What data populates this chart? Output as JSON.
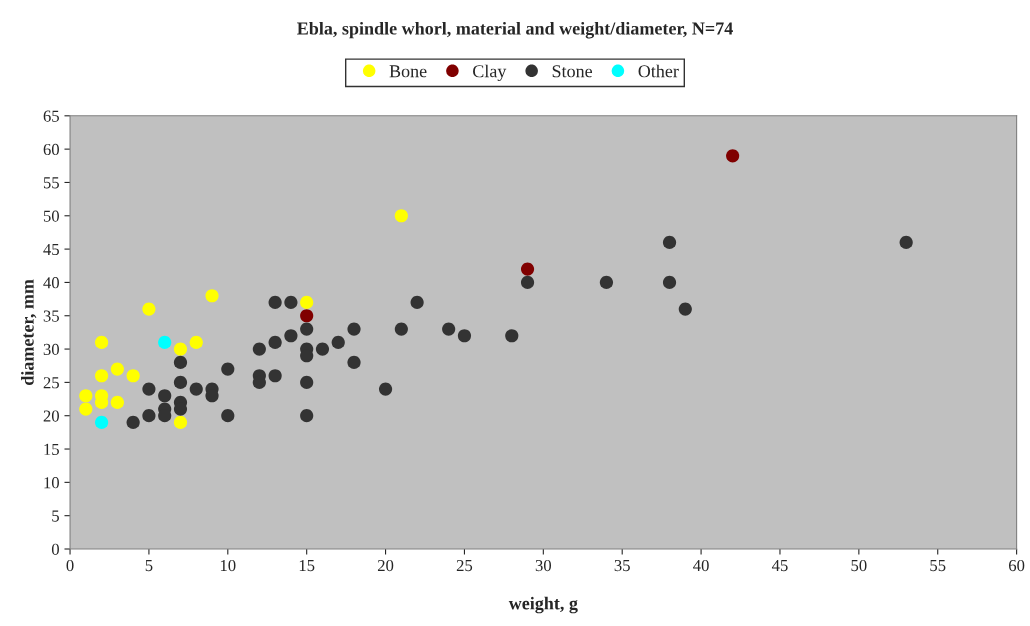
{
  "chart_data": {
    "type": "scatter",
    "title": "Ebla, spindle whorl, material and weight/diameter, N=74",
    "xlabel": "weight, g",
    "ylabel": "diameter, mm",
    "series": [
      {
        "name": "Bone",
        "color": "#ffff00",
        "x": [
          1,
          1,
          2,
          2,
          2,
          2,
          3,
          3,
          4,
          5,
          7,
          7,
          8,
          9,
          15,
          21
        ],
        "values": [
          23,
          21,
          31,
          26,
          23,
          22,
          27,
          22,
          26,
          36,
          30,
          19,
          31,
          38,
          37,
          50
        ]
      },
      {
        "name": "Clay",
        "color": "#800000",
        "x": [
          15,
          29,
          42
        ],
        "values": [
          35,
          42,
          59
        ]
      },
      {
        "name": "Stone",
        "color": "#333333",
        "x": [
          4,
          5,
          5,
          6,
          6,
          6,
          7,
          7,
          7,
          7,
          8,
          9,
          9,
          10,
          10,
          12,
          12,
          12,
          13,
          13,
          13,
          14,
          14,
          15,
          15,
          15,
          15,
          15,
          16,
          17,
          18,
          18,
          20,
          21,
          22,
          24,
          25,
          28,
          29,
          34,
          38,
          38,
          39,
          53
        ],
        "values": [
          19,
          24,
          20,
          23,
          21,
          20,
          28,
          25,
          22,
          21,
          24,
          24,
          23,
          27,
          20,
          30,
          26,
          25,
          37,
          31,
          26,
          37,
          32,
          33,
          30,
          29,
          25,
          20,
          30,
          31,
          33,
          28,
          24,
          33,
          37,
          33,
          32,
          32,
          40,
          40,
          46,
          40,
          36,
          46
        ]
      },
      {
        "name": "Other",
        "color": "#00ffff",
        "x": [
          2,
          6
        ],
        "values": [
          19,
          31
        ]
      }
    ],
    "xlim": [
      0,
      60
    ],
    "xticks": [
      0,
      5,
      10,
      15,
      20,
      25,
      30,
      35,
      40,
      45,
      50,
      55,
      60
    ],
    "ylim": [
      0,
      65
    ],
    "yticks": [
      0,
      5,
      10,
      15,
      20,
      25,
      30,
      35,
      40,
      45,
      50,
      55,
      60,
      65
    ],
    "grid": false,
    "legend": "top",
    "marker": "circle"
  }
}
